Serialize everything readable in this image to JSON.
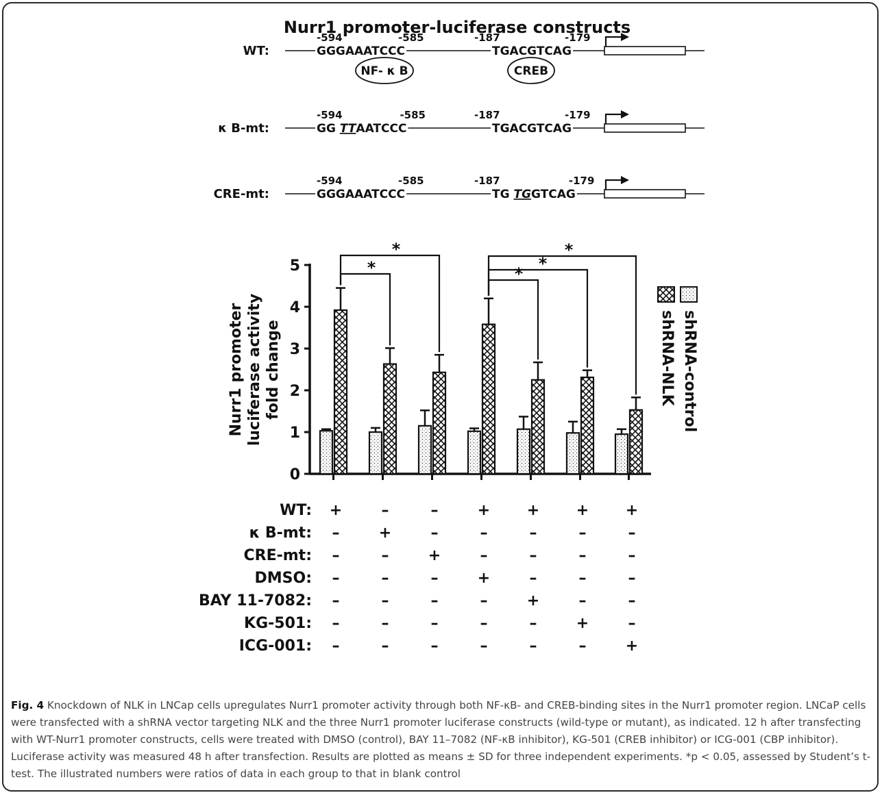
{
  "figure": {
    "title": "Nurr1 promoter-luciferase constructs",
    "constructs": [
      {
        "label": "WT:",
        "pos_a_start": "-594",
        "pos_a_end": "-585",
        "seq_a": [
          {
            "t": "GGGAAATCCC",
            "u": false
          }
        ],
        "pos_b_start": "-187",
        "pos_b_end": "-179",
        "seq_b": [
          {
            "t": "TGACGTCAG",
            "u": false
          }
        ],
        "oval_a": "NF- κ B",
        "oval_b": "CREB"
      },
      {
        "label": "κ B-mt:",
        "pos_a_start": "-594",
        "pos_a_end": "-585",
        "seq_a": [
          {
            "t": "GG ",
            "u": false
          },
          {
            "t": "TT",
            "u": true
          },
          {
            "t": "AATCCC",
            "u": false
          }
        ],
        "pos_b_start": "-187",
        "pos_b_end": "-179",
        "seq_b": [
          {
            "t": "TGACGTCAG",
            "u": false
          }
        ]
      },
      {
        "label": "CRE-mt:",
        "pos_a_start": "-594",
        "pos_a_end": "-585",
        "seq_a": [
          {
            "t": "GGGAAATCCC",
            "u": false
          }
        ],
        "pos_b_start": "-187",
        "pos_b_end": "-179",
        "seq_b": [
          {
            "t": "TG ",
            "u": false
          },
          {
            "t": "TG",
            "u": true
          },
          {
            "t": "GTCAG",
            "u": false
          }
        ]
      }
    ]
  },
  "chart_data": {
    "type": "bar",
    "ylabel_lines": [
      "Nurr1 promoter",
      "luciferase activity",
      "fold change"
    ],
    "ylim": [
      0,
      5
    ],
    "yticks": [
      0,
      1,
      2,
      3,
      4,
      5
    ],
    "groups": 7,
    "series": [
      {
        "name": "shRNA-control",
        "pattern": "dots",
        "values": [
          1.03,
          1.0,
          1.15,
          1.02,
          1.07,
          0.98,
          0.95
        ],
        "errors": [
          0.04,
          0.1,
          0.37,
          0.07,
          0.3,
          0.27,
          0.12
        ]
      },
      {
        "name": "shRNA-NLK",
        "pattern": "crosshatch",
        "values": [
          3.92,
          2.63,
          2.43,
          3.58,
          2.25,
          2.31,
          1.53
        ],
        "errors": [
          0.53,
          0.38,
          0.42,
          0.62,
          0.42,
          0.17,
          0.3
        ]
      }
    ],
    "significance": [
      {
        "from": 0,
        "to": 1,
        "label": "*"
      },
      {
        "from": 0,
        "to": 2,
        "label": "*"
      },
      {
        "from": 3,
        "to": 4,
        "label": "*"
      },
      {
        "from": 3,
        "to": 5,
        "label": "*"
      },
      {
        "from": 3,
        "to": 6,
        "label": "*"
      }
    ],
    "condition_table": {
      "rows": [
        {
          "label": "WT:",
          "marks": [
            "+",
            "–",
            "–",
            "+",
            "+",
            "+",
            "+"
          ]
        },
        {
          "label": "κ B-mt:",
          "marks": [
            "–",
            "+",
            "–",
            "–",
            "–",
            "–",
            "–"
          ]
        },
        {
          "label": "CRE-mt:",
          "marks": [
            "–",
            "–",
            "+",
            "–",
            "–",
            "–",
            "–"
          ]
        },
        {
          "label": "DMSO:",
          "marks": [
            "–",
            "–",
            "–",
            "+",
            "–",
            "–",
            "–"
          ]
        },
        {
          "label": "BAY 11-7082:",
          "marks": [
            "–",
            "–",
            "–",
            "–",
            "+",
            "–",
            "–"
          ]
        },
        {
          "label": "KG-501:",
          "marks": [
            "–",
            "–",
            "–",
            "–",
            "–",
            "+",
            "–"
          ]
        },
        {
          "label": "ICG-001:",
          "marks": [
            "–",
            "–",
            "–",
            "–",
            "–",
            "–",
            "+"
          ]
        }
      ]
    }
  },
  "caption": {
    "label": "Fig. 4",
    "text": "Knockdown of NLK in LNCap cells upregulates Nurr1 promoter activity through both NF-κB- and CREB-binding sites in the Nurr1 promoter region. LNCaP cells were transfected with a shRNA vector targeting NLK and the three Nurr1 promoter luciferase constructs (wild-type or mutant), as indicated. 12 h after transfecting with WT-Nurr1 promoter constructs, cells were treated with DMSO (control), BAY 11–7082 (NF-κB inhibitor), KG-501 (CREB inhibitor) or ICG-001 (CBP inhibitor). Luciferase activity was measured 48 h after transfection. Results are plotted as means ± SD for three independent experiments. *p < 0.05, assessed by Student’s t-test. The illustrated numbers were ratios of data in each group to that in blank control"
  }
}
